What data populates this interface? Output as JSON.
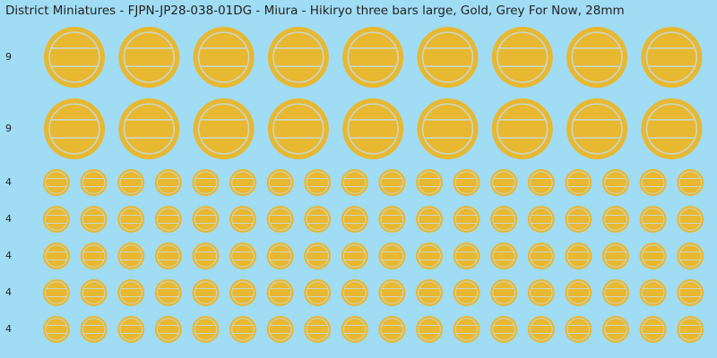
{
  "header": {
    "title": "District Miniatures - FJPN-JP28-038-01DG - Miura - Hikiryo three bars large, Gold, Grey For Now, 28mm"
  },
  "rows": [
    {
      "label": "9"
    },
    {
      "label": "9"
    },
    {
      "label": "4"
    },
    {
      "label": "4"
    },
    {
      "label": "4"
    },
    {
      "label": "4"
    },
    {
      "label": "4"
    }
  ]
}
